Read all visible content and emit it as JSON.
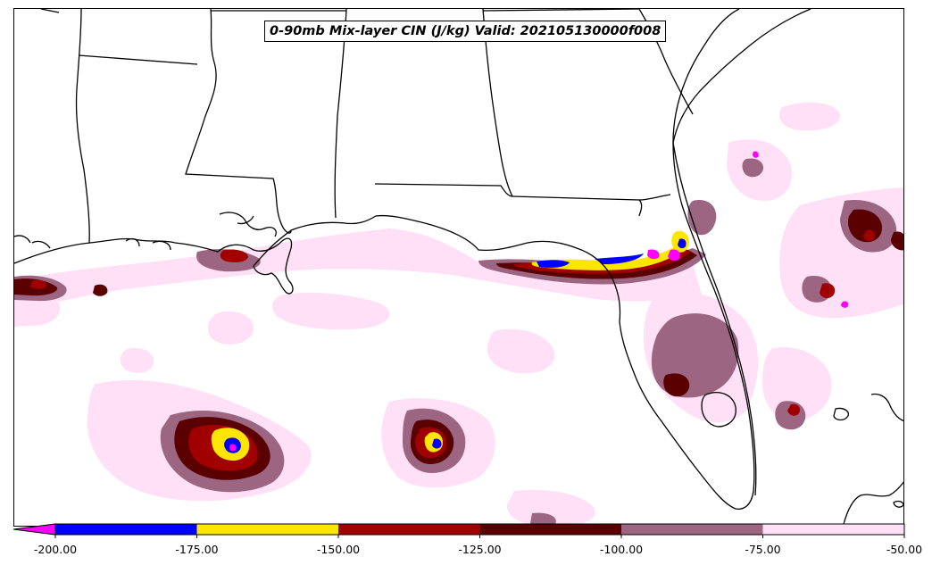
{
  "map": {
    "title": "0-90mb Mix-layer CIN (J/kg) Valid: 202105130000f008",
    "region": "Southeastern United States and Gulf of Mexico"
  },
  "legend": {
    "levels": [
      {
        "min": -200,
        "max": -175,
        "color": "#0000ff"
      },
      {
        "min": -175,
        "max": -150,
        "color": "#ffe600"
      },
      {
        "min": -150,
        "max": -125,
        "color": "#a00000"
      },
      {
        "min": -125,
        "max": -100,
        "color": "#5a0000"
      },
      {
        "min": -100,
        "max": -75,
        "color": "#9c6682"
      },
      {
        "min": -75,
        "max": -50,
        "color": "#ffe0f7"
      }
    ],
    "extend_below_color": "#ff00ff",
    "tick_labels": [
      "-200.00",
      "-175.00",
      "-150.00",
      "-125.00",
      "-100.00",
      "-75.00",
      "-50.00"
    ]
  },
  "colors": {
    "lightest": "#ffe0f7",
    "mauve": "#9c6682",
    "dark_maroon": "#5a0000",
    "red": "#a00000",
    "yellow": "#ffe600",
    "blue": "#0000ff",
    "magenta": "#ff00ff",
    "border": "#000000"
  }
}
